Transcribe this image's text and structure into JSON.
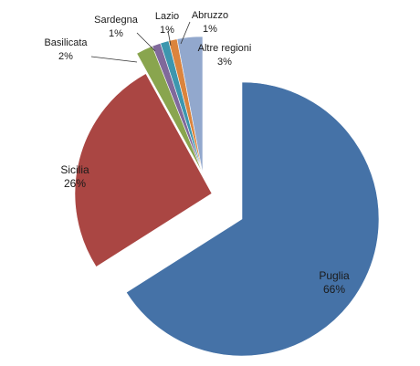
{
  "chart_data": {
    "type": "pie",
    "title": "",
    "start_angle_deg": 90,
    "direction": "clockwise",
    "exploded": true,
    "legend": "none",
    "slices": [
      {
        "label": "Puglia",
        "value_label": "66%",
        "value": 66,
        "color": "#4572a7"
      },
      {
        "label": "Sicilia",
        "value_label": "26%",
        "value": 26,
        "color": "#aa4643"
      },
      {
        "label": "Basilicata",
        "value_label": "2%",
        "value": 2,
        "color": "#89a54e"
      },
      {
        "label": "Sardegna",
        "value_label": "1%",
        "value": 1,
        "color": "#80699b"
      },
      {
        "label": "Lazio",
        "value_label": "1%",
        "value": 1,
        "color": "#3d96ae"
      },
      {
        "label": "Abruzzo",
        "value_label": "1%",
        "value": 1,
        "color": "#db843d"
      },
      {
        "label": "Altre regioni",
        "value_label": "3%",
        "value": 3,
        "color": "#92a8cd"
      }
    ]
  }
}
